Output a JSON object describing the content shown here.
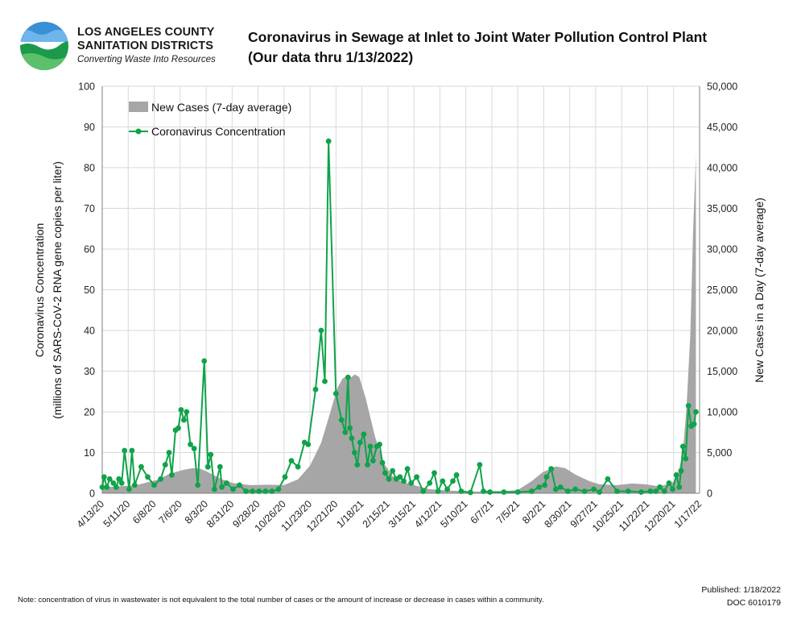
{
  "header": {
    "org_line1": "LOS ANGELES COUNTY",
    "org_line2": "SANITATION DISTRICTS",
    "tagline": "Converting Waste Into Resources",
    "title_line1": "Coronavirus in Sewage at Inlet to Joint Water Pollution Control Plant",
    "title_line2": "(Our data thru 1/13/2022)"
  },
  "footer": {
    "note": "Note: concentration of virus in wastewater is not equivalent to the total number of cases or the amount of increase or decrease in cases within a community.",
    "published": "Published: 1/18/2022",
    "doc": "DOC 6010179"
  },
  "colors": {
    "area": "#a6a6a6",
    "line": "#0fa34a",
    "grid": "#d9d9d9",
    "logo_blue": "#2a7fc9",
    "logo_green": "#1a9a4a"
  },
  "chart_data": {
    "type": "line",
    "ylabel_left_line1": "Coronavirus Concentration",
    "ylabel_left_line2": "(millions of SARS-CoV-2 RNA gene copies per liter)",
    "ylabel_right": "New Cases in a Day (7-day average)",
    "ylim_left": [
      0,
      100
    ],
    "ylim_right": [
      0,
      50000
    ],
    "yticks_left": [
      "0",
      "10",
      "20",
      "30",
      "40",
      "50",
      "60",
      "70",
      "80",
      "90",
      "100"
    ],
    "yticks_right": [
      "0",
      "5,000",
      "10,000",
      "15,000",
      "20,000",
      "25,000",
      "30,000",
      "35,000",
      "40,000",
      "45,000",
      "50,000"
    ],
    "xlim": [
      "2020-04-13",
      "2022-01-17"
    ],
    "xticks": [
      "4/13/20",
      "5/11/20",
      "6/8/20",
      "7/6/20",
      "8/3/20",
      "8/31/20",
      "9/28/20",
      "10/26/20",
      "11/23/20",
      "12/21/20",
      "1/18/21",
      "2/15/21",
      "3/15/21",
      "4/12/21",
      "5/10/21",
      "6/7/21",
      "7/5/21",
      "8/2/21",
      "8/30/21",
      "9/27/21",
      "10/25/21",
      "11/22/21",
      "12/20/21",
      "1/17/22"
    ],
    "grid": true,
    "legend_position": "top-left",
    "series": [
      {
        "name": "New Cases (7-day average)",
        "type": "area",
        "axis": "right",
        "x": [
          "2020-04-13",
          "2020-05-01",
          "2020-05-20",
          "2020-06-10",
          "2020-06-25",
          "2020-07-10",
          "2020-07-20",
          "2020-07-28",
          "2020-08-05",
          "2020-08-20",
          "2020-09-01",
          "2020-09-20",
          "2020-10-10",
          "2020-10-26",
          "2020-11-10",
          "2020-11-23",
          "2020-12-05",
          "2020-12-15",
          "2020-12-22",
          "2020-12-28",
          "2021-01-02",
          "2021-01-06",
          "2021-01-10",
          "2021-01-15",
          "2021-01-22",
          "2021-02-01",
          "2021-02-10",
          "2021-02-20",
          "2021-03-01",
          "2021-03-15",
          "2021-04-01",
          "2021-04-20",
          "2021-05-10",
          "2021-06-01",
          "2021-06-20",
          "2021-07-05",
          "2021-07-20",
          "2021-08-01",
          "2021-08-15",
          "2021-08-25",
          "2021-09-05",
          "2021-09-20",
          "2021-10-01",
          "2021-10-20",
          "2021-11-05",
          "2021-11-20",
          "2021-12-01",
          "2021-12-10",
          "2021-12-20",
          "2021-12-25",
          "2021-12-30",
          "2022-01-03",
          "2022-01-07",
          "2022-01-10",
          "2022-01-13"
        ],
        "values": [
          700,
          850,
          1000,
          1600,
          2400,
          2900,
          3100,
          3000,
          2600,
          1700,
          1250,
          1000,
          1050,
          1000,
          1700,
          3400,
          6200,
          10000,
          12800,
          14100,
          14400,
          14200,
          14600,
          14300,
          11700,
          7000,
          3800,
          2100,
          1500,
          1000,
          500,
          350,
          250,
          170,
          250,
          400,
          1500,
          2600,
          3300,
          3100,
          2300,
          1500,
          1100,
          1000,
          1200,
          1100,
          900,
          1000,
          1400,
          2500,
          5000,
          10800,
          19500,
          32000,
          41500
        ]
      },
      {
        "name": "Coronavirus Concentration",
        "type": "line",
        "axis": "left",
        "x": [
          "2020-04-13",
          "2020-04-15",
          "2020-04-18",
          "2020-04-21",
          "2020-04-25",
          "2020-04-28",
          "2020-05-01",
          "2020-05-04",
          "2020-05-07",
          "2020-05-12",
          "2020-05-15",
          "2020-05-18",
          "2020-05-25",
          "2020-06-01",
          "2020-06-08",
          "2020-06-15",
          "2020-06-20",
          "2020-06-24",
          "2020-06-27",
          "2020-07-01",
          "2020-07-04",
          "2020-07-07",
          "2020-07-10",
          "2020-07-13",
          "2020-07-17",
          "2020-07-21",
          "2020-07-25",
          "2020-08-01",
          "2020-08-05",
          "2020-08-08",
          "2020-08-12",
          "2020-08-18",
          "2020-08-20",
          "2020-08-25",
          "2020-09-01",
          "2020-09-08",
          "2020-09-15",
          "2020-09-22",
          "2020-09-29",
          "2020-10-06",
          "2020-10-13",
          "2020-10-20",
          "2020-10-27",
          "2020-11-03",
          "2020-11-10",
          "2020-11-17",
          "2020-11-21",
          "2020-11-29",
          "2020-12-05",
          "2020-12-09",
          "2020-12-13",
          "2020-12-21",
          "2020-12-27",
          "2020-12-31",
          "2021-01-03",
          "2021-01-05",
          "2021-01-07",
          "2021-01-10",
          "2021-01-13",
          "2021-01-16",
          "2021-01-20",
          "2021-01-24",
          "2021-01-27",
          "2021-01-30",
          "2021-02-03",
          "2021-02-06",
          "2021-02-09",
          "2021-02-12",
          "2021-02-16",
          "2021-02-20",
          "2021-02-24",
          "2021-02-28",
          "2021-03-04",
          "2021-03-08",
          "2021-03-12",
          "2021-03-18",
          "2021-03-25",
          "2021-04-01",
          "2021-04-06",
          "2021-04-10",
          "2021-04-15",
          "2021-04-20",
          "2021-04-26",
          "2021-04-30",
          "2021-05-05",
          "2021-05-15",
          "2021-05-25",
          "2021-05-29",
          "2021-06-05",
          "2021-06-20",
          "2021-07-05",
          "2021-07-20",
          "2021-07-28",
          "2021-08-03",
          "2021-08-05",
          "2021-08-10",
          "2021-08-15",
          "2021-08-20",
          "2021-08-28",
          "2021-09-05",
          "2021-09-15",
          "2021-09-25",
          "2021-10-01",
          "2021-10-10",
          "2021-10-20",
          "2021-11-01",
          "2021-11-15",
          "2021-11-25",
          "2021-12-01",
          "2021-12-05",
          "2021-12-10",
          "2021-12-15",
          "2021-12-19",
          "2021-12-23",
          "2021-12-26",
          "2021-12-28",
          "2021-12-30",
          "2022-01-02",
          "2022-01-05",
          "2022-01-08",
          "2022-01-11",
          "2022-01-13"
        ],
        "values": [
          1.5,
          4.0,
          1.5,
          3.5,
          2.5,
          1.5,
          3.5,
          2.5,
          10.5,
          1.0,
          10.5,
          2.0,
          6.5,
          4.0,
          2.0,
          3.5,
          7.0,
          10.0,
          4.5,
          15.5,
          16.0,
          20.5,
          18.0,
          20.0,
          12.0,
          11.0,
          2.0,
          32.5,
          6.5,
          9.5,
          1.0,
          6.5,
          1.5,
          2.5,
          1.0,
          2.0,
          0.5,
          0.5,
          0.5,
          0.5,
          0.5,
          1.0,
          4.0,
          8.0,
          6.5,
          12.5,
          12.0,
          25.5,
          40.0,
          27.5,
          86.5,
          24.5,
          18.0,
          15.0,
          28.5,
          16.0,
          13.5,
          10.0,
          7.0,
          12.5,
          14.5,
          7.0,
          11.5,
          8.0,
          11.5,
          12.0,
          7.5,
          5.0,
          3.5,
          5.5,
          3.5,
          4.0,
          3.0,
          6.0,
          2.5,
          4.0,
          0.5,
          2.5,
          5.0,
          0.5,
          3.0,
          1.0,
          3.0,
          4.5,
          0.5,
          0.2,
          7.0,
          0.5,
          0.3,
          0.3,
          0.3,
          0.5,
          1.5,
          2.0,
          4.0,
          6.0,
          1.0,
          1.5,
          0.5,
          1.0,
          0.5,
          1.0,
          0.3,
          3.5,
          0.5,
          0.5,
          0.3,
          0.5,
          0.5,
          1.5,
          0.5,
          2.5,
          1.0,
          4.5,
          1.5,
          5.5,
          11.5,
          8.5,
          21.5,
          16.5,
          17.0,
          20.0
        ]
      }
    ]
  }
}
